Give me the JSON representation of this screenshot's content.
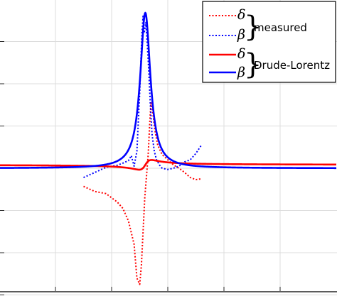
{
  "chart_data": {
    "type": "line",
    "title": "",
    "xlabel": "",
    "ylabel": "",
    "xlim": [
      -3.0,
      3.0
    ],
    "ylim": [
      -3.0,
      4.0
    ],
    "grid": true,
    "x_ticks": [
      -2,
      -1,
      0,
      1,
      2
    ],
    "y_ticks": [
      -3,
      -2,
      -1,
      0,
      1,
      2,
      3,
      4
    ],
    "legend": {
      "position": "top-right",
      "groups": [
        {
          "label": "measured",
          "symbols": [
            "δ",
            "β"
          ]
        },
        {
          "label": "Drude-Lorentz",
          "symbols": [
            "δ",
            "β"
          ]
        }
      ]
    },
    "series": [
      {
        "name": "δ",
        "group": "measured",
        "color": "#ff0000",
        "style": "dotted",
        "points": [
          [
            -1.5,
            -0.43
          ],
          [
            -1.3,
            -0.55
          ],
          [
            -1.1,
            -0.6
          ],
          [
            -0.9,
            -0.8
          ],
          [
            -0.8,
            -0.95
          ],
          [
            -0.7,
            -1.25
          ],
          [
            -0.6,
            -1.8
          ],
          [
            -0.55,
            -2.6
          ],
          [
            -0.5,
            -2.75
          ],
          [
            -0.47,
            -2.3
          ],
          [
            -0.44,
            -1.5
          ],
          [
            -0.41,
            -0.7
          ],
          [
            -0.38,
            -0.2
          ],
          [
            -0.35,
            0.3
          ],
          [
            -0.32,
            1.1
          ],
          [
            -0.3,
            1.55
          ],
          [
            -0.27,
            1.35
          ],
          [
            -0.23,
            0.9
          ],
          [
            -0.18,
            0.55
          ],
          [
            -0.1,
            0.32
          ],
          [
            0.0,
            0.2
          ],
          [
            0.1,
            0.08
          ],
          [
            0.2,
            0.0
          ],
          [
            0.3,
            -0.1
          ],
          [
            0.4,
            -0.22
          ],
          [
            0.5,
            -0.27
          ],
          [
            0.6,
            -0.25
          ]
        ]
      },
      {
        "name": "β",
        "group": "measured",
        "color": "#0000ff",
        "style": "dotted",
        "points": [
          [
            -1.5,
            -0.22
          ],
          [
            -1.3,
            -0.1
          ],
          [
            -1.1,
            0.02
          ],
          [
            -0.9,
            0.07
          ],
          [
            -0.8,
            0.12
          ],
          [
            -0.7,
            0.18
          ],
          [
            -0.65,
            0.3
          ],
          [
            -0.6,
            0.05
          ],
          [
            -0.55,
            0.4
          ],
          [
            -0.5,
            1.8
          ],
          [
            -0.46,
            3.2
          ],
          [
            -0.44,
            3.6
          ],
          [
            -0.42,
            3.2
          ],
          [
            -0.39,
            3.45
          ],
          [
            -0.35,
            2.6
          ],
          [
            -0.31,
            1.5
          ],
          [
            -0.28,
            0.8
          ],
          [
            -0.24,
            0.4
          ],
          [
            -0.2,
            0.2
          ],
          [
            -0.15,
            0.08
          ],
          [
            -0.1,
            0.0
          ],
          [
            0.0,
            -0.03
          ],
          [
            0.1,
            0.0
          ],
          [
            0.2,
            0.05
          ],
          [
            0.3,
            0.15
          ],
          [
            0.4,
            0.2
          ],
          [
            0.5,
            0.35
          ],
          [
            0.6,
            0.55
          ]
        ]
      },
      {
        "name": "δ",
        "group": "Drude-Lorentz",
        "color": "#ff0000",
        "style": "solid",
        "function": "lorentz_delta",
        "params": {
          "x0": -0.4,
          "gamma": 0.11,
          "amplitude": 0.23,
          "offset": 0.08
        }
      },
      {
        "name": "β",
        "group": "Drude-Lorentz",
        "color": "#0000ff",
        "style": "solid",
        "function": "lorentz_beta",
        "params": {
          "x0": -0.4,
          "gamma": 0.11,
          "amplitude": 0.23,
          "offset": 0.0
        }
      }
    ]
  }
}
